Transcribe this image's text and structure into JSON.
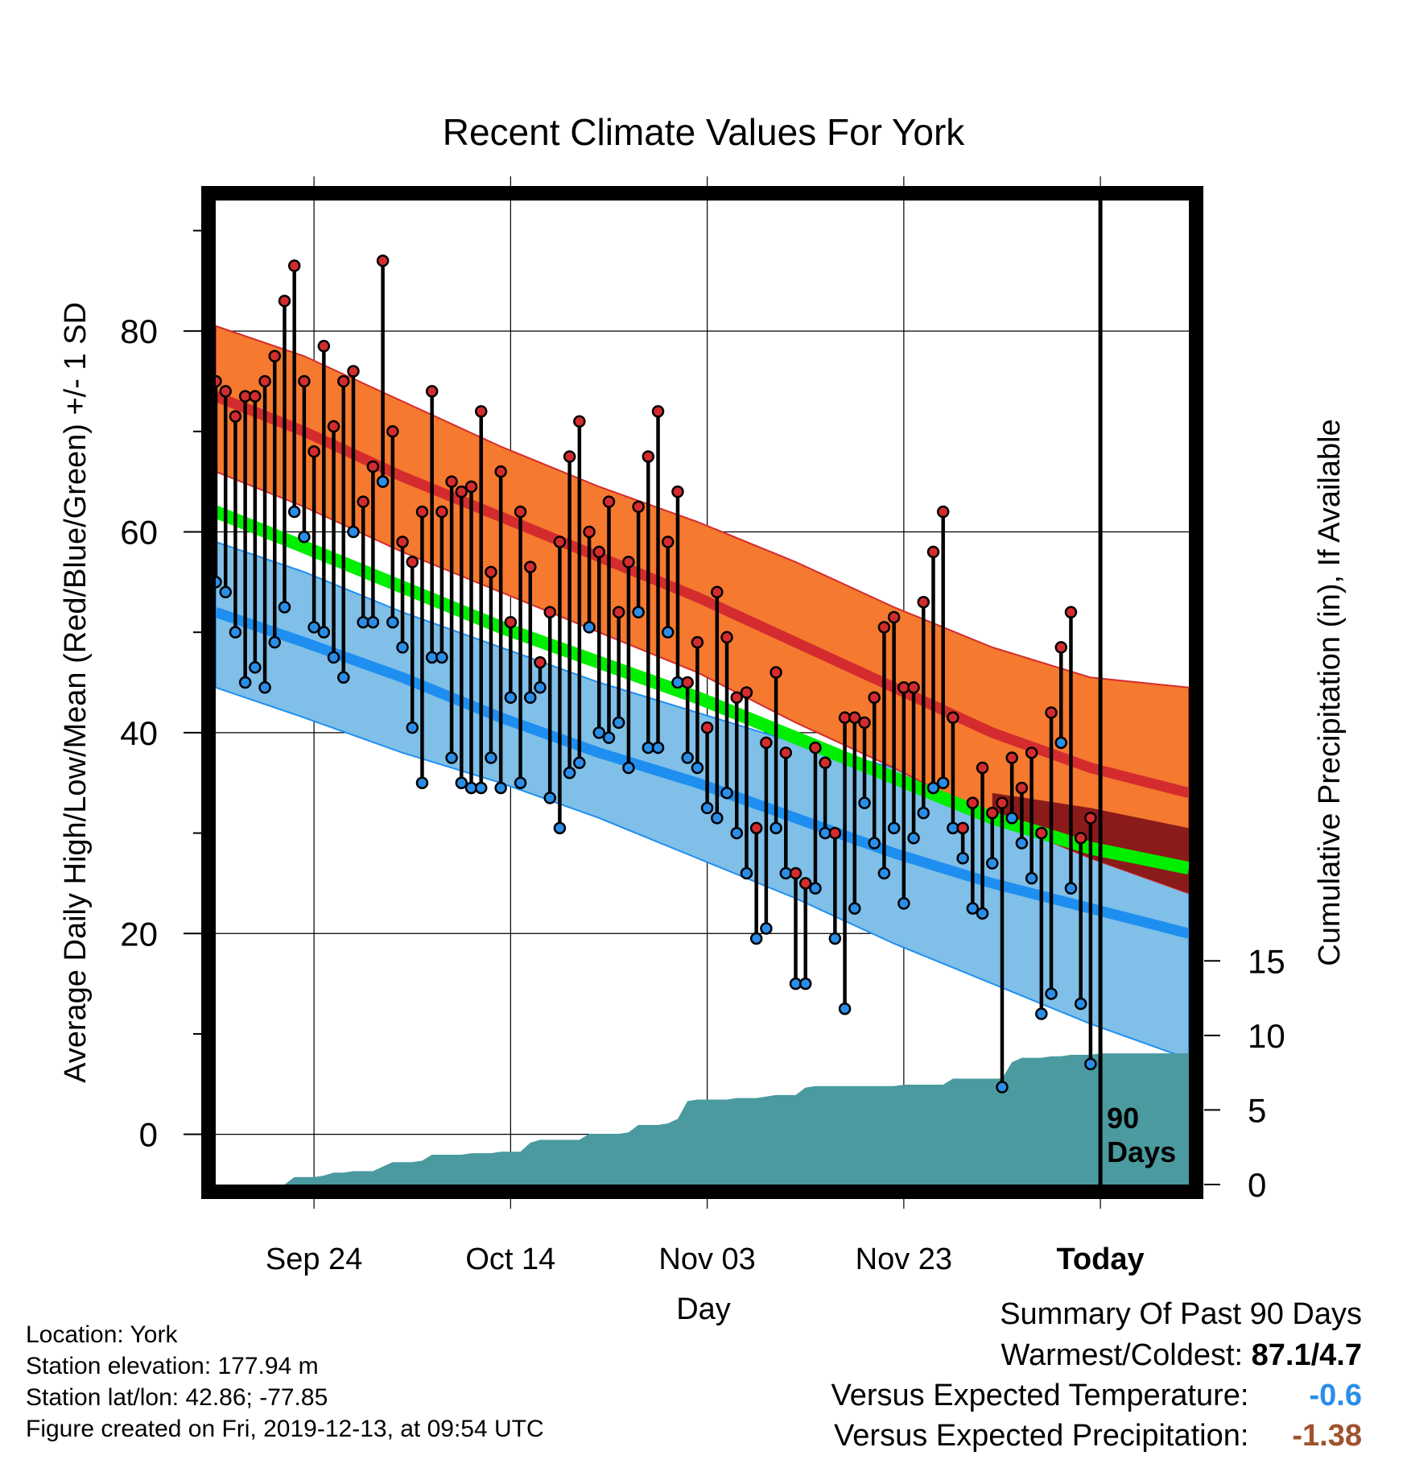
{
  "chart_data": {
    "type": "line",
    "title": "Recent Climate Values For York",
    "xlabel": "Day",
    "ylabel": "Average Daily High/Low/Mean (Red/Blue/Green) +/- 1 SD",
    "ylabel_right": "Cumulative Precipitation (in), If Available",
    "ylim": [
      -5,
      93
    ],
    "y_ticks": [
      "0",
      "20",
      "40",
      "60",
      "80"
    ],
    "y2_lim": [
      0,
      66
    ],
    "y2_ticks": [
      "0",
      "5",
      "10",
      "15"
    ],
    "x_range_days": [
      1,
      100
    ],
    "x_ticks": [
      {
        "day": 11,
        "label": "Sep 24"
      },
      {
        "day": 31,
        "label": "Oct 14"
      },
      {
        "day": 51,
        "label": "Nov 03"
      },
      {
        "day": 71,
        "label": "Nov 23"
      },
      {
        "day": 91,
        "label": "Today"
      }
    ],
    "annotation": {
      "day": 91,
      "text_1": "90",
      "text_2": "Days"
    },
    "normals": {
      "day": [
        1,
        10,
        20,
        30,
        40,
        50,
        60,
        70,
        80,
        90,
        100
      ],
      "high_mean": [
        73.5,
        70.0,
        65.5,
        61.5,
        57.5,
        53.5,
        49.0,
        44.5,
        40.0,
        36.5,
        34.0
      ],
      "high_upper": [
        80.5,
        77.5,
        73.0,
        68.5,
        64.5,
        61.0,
        57.0,
        52.5,
        48.5,
        45.5,
        44.5
      ],
      "high_lower": [
        66.0,
        62.5,
        58.0,
        54.0,
        50.0,
        46.0,
        41.0,
        36.5,
        31.5,
        27.5,
        24.0
      ],
      "mean_mean": [
        62.0,
        58.5,
        54.5,
        50.5,
        47.0,
        43.5,
        39.5,
        35.5,
        31.5,
        28.5,
        26.5
      ],
      "low_mean": [
        52.0,
        49.0,
        45.5,
        41.5,
        38.0,
        35.0,
        31.5,
        28.0,
        25.0,
        22.5,
        20.0
      ],
      "low_upper": [
        59.0,
        56.0,
        52.0,
        48.5,
        45.0,
        42.0,
        39.0,
        36.5,
        34.0,
        32.5,
        30.5
      ],
      "low_lower": [
        44.5,
        41.5,
        38.0,
        35.0,
        31.5,
        27.5,
        23.5,
        19.0,
        15.0,
        11.0,
        7.5
      ]
    },
    "series": [
      {
        "name": "High",
        "x_start": 1,
        "values": [
          75,
          74,
          71.5,
          73.5,
          73.5,
          75,
          77.5,
          83,
          86.5,
          75,
          68,
          78.5,
          70.5,
          75,
          76,
          63,
          66.5,
          87,
          70,
          59,
          57,
          62,
          74,
          62,
          65,
          64,
          64.5,
          72,
          56,
          66,
          51,
          62,
          56.5,
          47,
          52,
          59,
          67.5,
          71,
          60,
          58,
          63,
          52,
          57,
          62.5,
          67.5,
          72,
          59,
          64,
          45,
          49,
          40.5,
          54,
          49.5,
          43.5,
          44,
          30.5,
          39,
          46,
          38,
          26,
          25,
          38.5,
          37,
          30,
          41.5,
          41.5,
          41,
          43.5,
          50.5,
          51.5,
          44.5,
          44.5,
          53,
          58,
          62,
          41.5,
          30.5,
          33,
          36.5,
          32,
          33,
          37.5,
          34.5,
          38,
          30,
          42,
          48.5,
          52,
          29.5,
          31.5
        ]
      },
      {
        "name": "Low",
        "x_start": 1,
        "values": [
          55,
          54,
          50,
          45,
          46.5,
          44.5,
          49,
          52.5,
          62,
          59.5,
          50.5,
          50,
          47.5,
          45.5,
          60,
          51,
          51,
          65,
          51,
          48.5,
          40.5,
          35,
          47.5,
          47.5,
          37.5,
          35,
          34.5,
          34.5,
          37.5,
          34.5,
          43.5,
          35,
          43.5,
          44.5,
          33.5,
          30.5,
          36,
          37,
          50.5,
          40,
          39.5,
          41,
          36.5,
          52,
          38.5,
          38.5,
          50,
          45,
          37.5,
          36.5,
          32.5,
          31.5,
          34,
          30,
          26,
          19.5,
          20.5,
          30.5,
          26,
          15,
          15,
          24.5,
          30,
          19.5,
          12.5,
          22.5,
          33,
          29,
          26,
          30.5,
          23,
          29.5,
          32,
          34.5,
          35,
          30.5,
          27.5,
          22.5,
          22,
          27,
          4.7,
          31.5,
          29,
          25.5,
          12,
          14,
          39,
          24.5,
          13,
          7
        ]
      },
      {
        "name": "Precipitation",
        "x_start": 1,
        "values": [
          0,
          0,
          0,
          0,
          0,
          0,
          0,
          0,
          0.5,
          0.5,
          0.5,
          0.6,
          0.8,
          0.8,
          0.9,
          0.9,
          0.9,
          1.2,
          1.5,
          1.5,
          1.5,
          1.6,
          2.0,
          2.0,
          2.0,
          2.0,
          2.1,
          2.1,
          2.1,
          2.2,
          2.2,
          2.2,
          2.8,
          3.0,
          3.0,
          3.0,
          3.0,
          3.0,
          3.4,
          3.4,
          3.4,
          3.4,
          3.5,
          4.0,
          4.0,
          4.0,
          4.1,
          4.4,
          5.6,
          5.7,
          5.7,
          5.7,
          5.7,
          5.8,
          5.8,
          5.8,
          5.9,
          6.0,
          6.0,
          6.0,
          6.5,
          6.6,
          6.6,
          6.6,
          6.6,
          6.6,
          6.6,
          6.6,
          6.6,
          6.6,
          6.7,
          6.7,
          6.7,
          6.7,
          6.7,
          7.1,
          7.1,
          7.1,
          7.1,
          7.1,
          7.1,
          8.2,
          8.5,
          8.5,
          8.5,
          8.6,
          8.6,
          8.7,
          8.7,
          8.7,
          8.8,
          8.8,
          8.8,
          8.8,
          8.8,
          8.8,
          8.8,
          8.8,
          8.8,
          8.8
        ]
      }
    ],
    "colors": {
      "high_band": "#f5792f",
      "high_mean": "#d42c2e",
      "mean": "#00ee00",
      "low_band": "#7fbfe8",
      "low_mean": "#1e8ff0",
      "overlap": "#8b1a1a",
      "precip": "#4a9aa0",
      "high_dot": "#d42c2e",
      "low_dot": "#2a8ee8"
    },
    "grid": true
  },
  "footer": {
    "location": "Location: York",
    "elevation": "Station elevation: 177.94 m",
    "latlon": "Station lat/lon: 42.86; -77.85",
    "created": "Figure created on Fri, 2019-12-13, at 09:54 UTC"
  },
  "summary": {
    "heading": "Summary Of Past 90 Days",
    "rows": [
      {
        "label": "Warmest/Coldest:",
        "value": "87.1/4.7",
        "color": "#000000"
      },
      {
        "label": "Versus Expected Temperature:",
        "value": "-0.6",
        "color": "#2a8ee8"
      },
      {
        "label": "Versus Expected Precipitation:",
        "value": "-1.38",
        "color": "#a0522d"
      }
    ]
  }
}
